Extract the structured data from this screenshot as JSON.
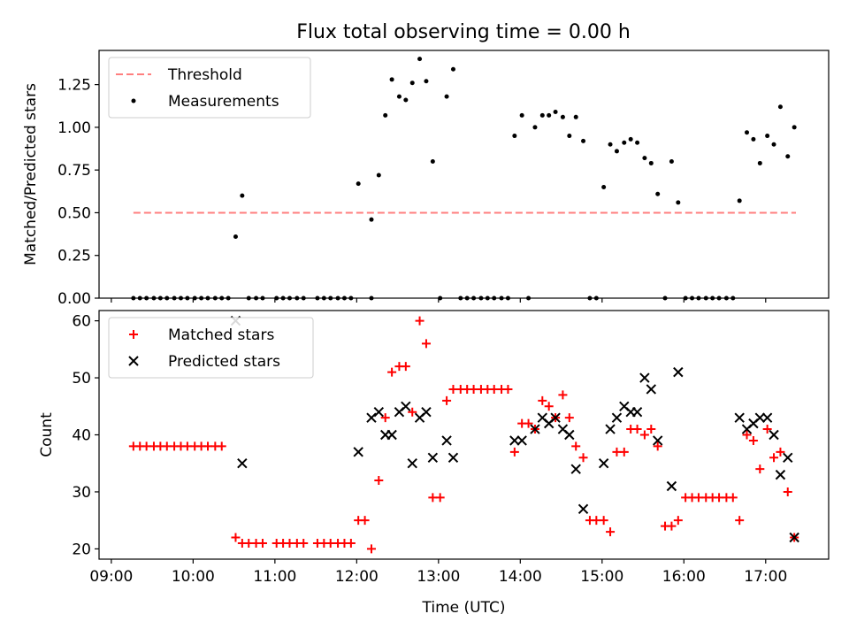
{
  "title": "Flux total observing time = 0.00 h",
  "colors": {
    "threshold": "#ff7f7f",
    "measurement": "#000000",
    "matched": "#ff0000",
    "predicted": "#000000",
    "axes": "#000000",
    "background": "#ffffff"
  },
  "chart_data": [
    {
      "type": "scatter",
      "ylabel": "Matched/Predicted stars",
      "xlabel": "",
      "ylim": [
        0,
        1.45
      ],
      "xlim": [
        8.85,
        17.77
      ],
      "y_ticks": [
        {
          "v": 0,
          "label": "0.00"
        },
        {
          "v": 0.25,
          "label": "0.25"
        },
        {
          "v": 0.5,
          "label": "0.50"
        },
        {
          "v": 0.75,
          "label": "0.75"
        },
        {
          "v": 1.0,
          "label": "1.00"
        },
        {
          "v": 1.25,
          "label": "1.25"
        }
      ],
      "legend_position": "upper-left",
      "threshold": {
        "name": "Threshold",
        "value": 0.5,
        "x_start": 9.27,
        "x_end": 17.37
      },
      "series": [
        {
          "name": "Measurements",
          "x": [
            9.27,
            9.35,
            9.43,
            9.52,
            9.6,
            9.68,
            9.77,
            9.85,
            9.93,
            10.02,
            10.1,
            10.18,
            10.27,
            10.35,
            10.43,
            10.52,
            10.6,
            10.68,
            10.77,
            10.85,
            11.02,
            11.1,
            11.18,
            11.27,
            11.35,
            11.52,
            11.6,
            11.68,
            11.77,
            11.85,
            11.93,
            12.02,
            12.18,
            12.18,
            12.27,
            12.35,
            12.43,
            12.52,
            12.6,
            12.68,
            12.77,
            12.85,
            12.93,
            13.02,
            13.1,
            13.18,
            13.27,
            13.35,
            13.43,
            13.52,
            13.6,
            13.68,
            13.77,
            13.85,
            13.93,
            14.02,
            14.1,
            14.18,
            14.27,
            14.35,
            14.43,
            14.52,
            14.6,
            14.68,
            14.77,
            14.85,
            14.93,
            15.02,
            15.1,
            15.18,
            15.27,
            15.35,
            15.43,
            15.52,
            15.6,
            15.68,
            15.77,
            15.85,
            15.93,
            16.02,
            16.1,
            16.18,
            16.27,
            16.35,
            16.43,
            16.52,
            16.6,
            16.68,
            16.77,
            16.85,
            16.93,
            17.02,
            17.1,
            17.18,
            17.27,
            17.35
          ],
          "y": [
            0,
            0,
            0,
            0,
            0,
            0,
            0,
            0,
            0,
            0,
            0,
            0,
            0,
            0,
            0,
            0.36,
            0.6,
            0,
            0,
            0,
            0,
            0,
            0,
            0,
            0,
            0,
            0,
            0,
            0,
            0,
            0,
            0.67,
            0,
            0.46,
            0.72,
            1.07,
            1.28,
            1.18,
            1.16,
            1.26,
            1.4,
            1.27,
            0.8,
            0,
            1.18,
            1.34,
            0,
            0,
            0,
            0,
            0,
            0,
            0,
            0,
            0.95,
            1.07,
            0,
            1.0,
            1.07,
            1.07,
            1.09,
            1.06,
            0.95,
            1.06,
            0.92,
            0,
            0,
            0.65,
            0.9,
            0.86,
            0.91,
            0.93,
            0.91,
            0.82,
            0.79,
            0.61,
            0,
            0.8,
            0.56,
            0,
            0,
            0,
            0,
            0,
            0,
            0,
            0,
            0.57,
            0.97,
            0.93,
            0.79,
            0.95,
            0.9,
            1.12,
            0.83,
            1.0
          ]
        }
      ]
    },
    {
      "type": "scatter",
      "ylabel": "Count",
      "xlabel": "Time (UTC)",
      "ylim": [
        18.2,
        61.8
      ],
      "xlim": [
        8.85,
        17.77
      ],
      "y_ticks": [
        {
          "v": 20,
          "label": "20"
        },
        {
          "v": 30,
          "label": "30"
        },
        {
          "v": 40,
          "label": "40"
        },
        {
          "v": 50,
          "label": "50"
        },
        {
          "v": 60,
          "label": "60"
        }
      ],
      "x_ticks": [
        {
          "v": 9,
          "label": "09:00"
        },
        {
          "v": 10,
          "label": "10:00"
        },
        {
          "v": 11,
          "label": "11:00"
        },
        {
          "v": 12,
          "label": "12:00"
        },
        {
          "v": 13,
          "label": "13:00"
        },
        {
          "v": 14,
          "label": "14:00"
        },
        {
          "v": 15,
          "label": "15:00"
        },
        {
          "v": 16,
          "label": "16:00"
        },
        {
          "v": 17,
          "label": "17:00"
        }
      ],
      "legend_position": "upper-left",
      "series": [
        {
          "name": "Matched stars",
          "marker": "plus",
          "x": [
            9.27,
            9.35,
            9.43,
            9.52,
            9.6,
            9.68,
            9.77,
            9.85,
            9.93,
            10.02,
            10.1,
            10.18,
            10.27,
            10.35,
            10.52,
            10.6,
            10.68,
            10.77,
            10.85,
            11.02,
            11.1,
            11.18,
            11.27,
            11.35,
            11.52,
            11.6,
            11.68,
            11.77,
            11.85,
            11.93,
            12.02,
            12.1,
            12.18,
            12.27,
            12.35,
            12.43,
            12.52,
            12.6,
            12.68,
            12.77,
            12.85,
            12.93,
            13.02,
            13.1,
            13.18,
            13.27,
            13.35,
            13.43,
            13.52,
            13.6,
            13.68,
            13.77,
            13.85,
            13.93,
            14.02,
            14.1,
            14.18,
            14.27,
            14.35,
            14.43,
            14.52,
            14.6,
            14.68,
            14.77,
            14.85,
            14.93,
            15.02,
            15.1,
            15.18,
            15.27,
            15.35,
            15.43,
            15.52,
            15.6,
            15.68,
            15.77,
            15.85,
            15.93,
            16.02,
            16.1,
            16.18,
            16.27,
            16.35,
            16.43,
            16.52,
            16.6,
            16.68,
            16.77,
            16.85,
            16.93,
            17.02,
            17.1,
            17.18,
            17.27,
            17.35
          ],
          "y": [
            38,
            38,
            38,
            38,
            38,
            38,
            38,
            38,
            38,
            38,
            38,
            38,
            38,
            38,
            22,
            21,
            21,
            21,
            21,
            21,
            21,
            21,
            21,
            21,
            21,
            21,
            21,
            21,
            21,
            21,
            25,
            25,
            20,
            32,
            43,
            51,
            52,
            52,
            44,
            60,
            56,
            29,
            29,
            46,
            48,
            48,
            48,
            48,
            48,
            48,
            48,
            48,
            48,
            37,
            42,
            42,
            41,
            46,
            45,
            43,
            47,
            43,
            38,
            36,
            25,
            25,
            25,
            23,
            37,
            37,
            41,
            41,
            40,
            41,
            38,
            24,
            24,
            25,
            29,
            29,
            29,
            29,
            29,
            29,
            29,
            29,
            25,
            40,
            39,
            34,
            41,
            36,
            37,
            30,
            22
          ]
        },
        {
          "name": "Predicted stars",
          "marker": "x",
          "x": [
            10.52,
            10.6,
            12.02,
            12.18,
            12.27,
            12.35,
            12.43,
            12.52,
            12.6,
            12.68,
            12.77,
            12.85,
            12.93,
            13.1,
            13.18,
            13.93,
            14.02,
            14.18,
            14.27,
            14.35,
            14.43,
            14.52,
            14.6,
            14.68,
            14.77,
            15.02,
            15.1,
            15.18,
            15.27,
            15.35,
            15.43,
            15.52,
            15.6,
            15.68,
            15.85,
            15.93,
            16.68,
            16.77,
            16.85,
            16.93,
            17.02,
            17.1,
            17.18,
            17.27,
            17.35
          ],
          "y": [
            60,
            35,
            37,
            43,
            44,
            40,
            40,
            44,
            45,
            35,
            43,
            44,
            36,
            39,
            36,
            39,
            39,
            41,
            43,
            42,
            43,
            41,
            40,
            34,
            27,
            35,
            41,
            43,
            45,
            44,
            44,
            50,
            48,
            39,
            31,
            51,
            43,
            41,
            42,
            43,
            43,
            40,
            33,
            36,
            22
          ]
        }
      ]
    }
  ]
}
